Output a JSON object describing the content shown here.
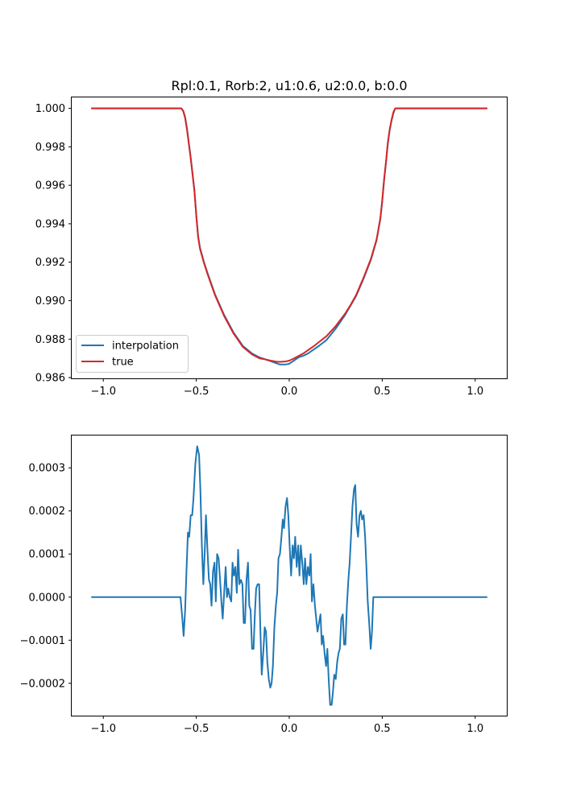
{
  "chart_data": [
    {
      "type": "line",
      "title": "Rpl:0.1, Rorb:2, u1:0.6, u2:0.0, b:0.0",
      "xlabel": "",
      "ylabel": "",
      "xlim": [
        -1.17,
        1.17
      ],
      "ylim": [
        0.98596,
        1.00057
      ],
      "xticks": [
        -1.0,
        -0.5,
        0.0,
        0.5,
        1.0
      ],
      "xtick_labels": [
        "−1.0",
        "−0.5",
        "0.0",
        "0.5",
        "1.0"
      ],
      "yticks": [
        0.986,
        0.988,
        0.99,
        0.992,
        0.994,
        0.996,
        0.998,
        1.0
      ],
      "ytick_labels": [
        "0.986",
        "0.988",
        "0.990",
        "0.992",
        "0.994",
        "0.996",
        "0.998",
        "1.000"
      ],
      "grid": false,
      "legend": "lower-left",
      "series": [
        {
          "name": "interpolation",
          "color": "#1f77b4",
          "x": [
            -1.065,
            -0.6,
            -0.58,
            -0.57,
            -0.56,
            -0.55,
            -0.53,
            -0.51,
            -0.5,
            -0.49,
            -0.48,
            -0.46,
            -0.44,
            -0.4,
            -0.35,
            -0.3,
            -0.25,
            -0.2,
            -0.16,
            -0.13,
            -0.1,
            -0.07,
            -0.05,
            -0.02,
            0.0,
            0.02,
            0.05,
            0.08,
            0.1,
            0.13,
            0.16,
            0.2,
            0.25,
            0.3,
            0.33,
            0.36,
            0.4,
            0.44,
            0.47,
            0.49,
            0.5,
            0.51,
            0.52,
            0.53,
            0.54,
            0.55,
            0.56,
            0.57,
            0.6,
            1.065
          ],
          "y": [
            1.0,
            1.0,
            1.0,
            0.99987,
            0.99955,
            0.99895,
            0.99745,
            0.99575,
            0.99445,
            0.99335,
            0.99275,
            0.99205,
            0.99145,
            0.99035,
            0.98925,
            0.98835,
            0.98765,
            0.98725,
            0.98705,
            0.98695,
            0.98685,
            0.98675,
            0.98668,
            0.98668,
            0.98672,
            0.98685,
            0.98705,
            0.98715,
            0.98725,
            0.98745,
            0.98765,
            0.98795,
            0.98855,
            0.98925,
            0.98975,
            0.99025,
            0.99115,
            0.99215,
            0.99315,
            0.99425,
            0.99515,
            0.99625,
            0.99715,
            0.99815,
            0.99885,
            0.99935,
            0.99975,
            1.0,
            1.0,
            1.0
          ]
        },
        {
          "name": "true",
          "color": "#d62728",
          "x": [
            -1.065,
            -0.6,
            -0.58,
            -0.57,
            -0.56,
            -0.55,
            -0.53,
            -0.51,
            -0.5,
            -0.49,
            -0.48,
            -0.46,
            -0.44,
            -0.4,
            -0.35,
            -0.3,
            -0.25,
            -0.2,
            -0.16,
            -0.13,
            -0.1,
            -0.07,
            -0.05,
            -0.02,
            0.0,
            0.02,
            0.05,
            0.08,
            0.1,
            0.13,
            0.16,
            0.2,
            0.25,
            0.3,
            0.33,
            0.36,
            0.4,
            0.44,
            0.47,
            0.49,
            0.5,
            0.51,
            0.52,
            0.53,
            0.54,
            0.55,
            0.56,
            0.57,
            0.6,
            1.065
          ],
          "y": [
            1.0,
            1.0,
            1.0,
            0.99985,
            0.9995,
            0.9989,
            0.9974,
            0.9957,
            0.9944,
            0.9933,
            0.9927,
            0.992,
            0.9914,
            0.9903,
            0.9892,
            0.9883,
            0.9876,
            0.9872,
            0.987,
            0.98695,
            0.98688,
            0.98683,
            0.98682,
            0.98684,
            0.98688,
            0.98697,
            0.98712,
            0.98728,
            0.98742,
            0.98762,
            0.98785,
            0.98815,
            0.98868,
            0.98932,
            0.98978,
            0.9903,
            0.9912,
            0.9922,
            0.9932,
            0.9943,
            0.9952,
            0.9963,
            0.9972,
            0.9982,
            0.9989,
            0.9994,
            0.9998,
            1.0,
            1.0,
            1.0
          ]
        }
      ]
    },
    {
      "type": "line",
      "title": "",
      "xlabel": "",
      "ylabel": "",
      "xlim": [
        -1.17,
        1.17
      ],
      "ylim": [
        -0.000275,
        0.000375
      ],
      "xticks": [
        -1.0,
        -0.5,
        0.0,
        0.5,
        1.0
      ],
      "xtick_labels": [
        "−1.0",
        "−0.5",
        "0.0",
        "0.5",
        "1.0"
      ],
      "yticks": [
        -0.0002,
        -0.0001,
        0.0,
        0.0001,
        0.0002,
        0.0003
      ],
      "ytick_labels": [
        "−0.0002",
        "−0.0001",
        "0.0000",
        "0.0001",
        "0.0002",
        "0.0003"
      ],
      "grid": false,
      "series": [
        {
          "color": "#1f77b4",
          "x": [
            -1.065,
            -0.585,
            -0.575,
            -0.568,
            -0.56,
            -0.552,
            -0.545,
            -0.538,
            -0.53,
            -0.522,
            -0.515,
            -0.505,
            -0.495,
            -0.485,
            -0.478,
            -0.47,
            -0.462,
            -0.455,
            -0.448,
            -0.44,
            -0.432,
            -0.425,
            -0.418,
            -0.41,
            -0.402,
            -0.395,
            -0.388,
            -0.38,
            -0.372,
            -0.365,
            -0.358,
            -0.35,
            -0.342,
            -0.335,
            -0.328,
            -0.32,
            -0.312,
            -0.305,
            -0.298,
            -0.29,
            -0.282,
            -0.275,
            -0.268,
            -0.26,
            -0.252,
            -0.245,
            -0.238,
            -0.23,
            -0.222,
            -0.215,
            -0.208,
            -0.2,
            -0.192,
            -0.185,
            -0.178,
            -0.17,
            -0.162,
            -0.155,
            -0.148,
            -0.14,
            -0.132,
            -0.125,
            -0.118,
            -0.11,
            -0.102,
            -0.095,
            -0.088,
            -0.08,
            -0.072,
            -0.065,
            -0.058,
            -0.05,
            -0.042,
            -0.035,
            -0.028,
            -0.02,
            -0.012,
            -0.005,
            0.002,
            0.01,
            0.018,
            0.025,
            0.032,
            0.04,
            0.048,
            0.055,
            0.062,
            0.07,
            0.078,
            0.085,
            0.092,
            0.1,
            0.108,
            0.115,
            0.122,
            0.13,
            0.138,
            0.145,
            0.152,
            0.16,
            0.168,
            0.175,
            0.182,
            0.19,
            0.198,
            0.205,
            0.212,
            0.22,
            0.228,
            0.235,
            0.242,
            0.25,
            0.258,
            0.265,
            0.272,
            0.28,
            0.288,
            0.295,
            0.302,
            0.31,
            0.318,
            0.325,
            0.332,
            0.34,
            0.348,
            0.355,
            0.362,
            0.37,
            0.378,
            0.385,
            0.392,
            0.4,
            0.408,
            0.415,
            0.422,
            0.43,
            0.438,
            0.445,
            0.452,
            0.46,
            0.468,
            0.475,
            0.482,
            0.49,
            0.498,
            0.505,
            0.512,
            0.52,
            0.528,
            0.535,
            0.542,
            0.55,
            0.558,
            0.565,
            0.575,
            0.585,
            1.065
          ],
          "y": [
            0.0,
            0.0,
            -5e-05,
            -9e-05,
            -3e-05,
            7e-05,
            0.00015,
            0.00014,
            0.00019,
            0.00019,
            0.00023,
            0.00031,
            0.00035,
            0.00033,
            0.00025,
            0.00012,
            3e-05,
            0.0001,
            0.00019,
            0.00011,
            4e-05,
            3e-05,
            -2e-05,
            6e-05,
            8e-05,
            -1e-05,
            0.0001,
            9e-05,
            4e-05,
            -1e-05,
            -5e-05,
            1e-05,
            7e-05,
            0.0,
            2e-05,
            0.0,
            -1e-05,
            8e-05,
            5e-05,
            7e-05,
            1e-05,
            0.00011,
            3e-05,
            4e-05,
            3e-05,
            -6e-05,
            -6e-05,
            4e-05,
            8e-05,
            -2e-05,
            -3e-05,
            -0.00012,
            -0.00012,
            -4e-05,
            2e-05,
            3e-05,
            3e-05,
            -8e-05,
            -0.00018,
            -0.00013,
            -7e-05,
            -8e-05,
            -0.00015,
            -0.00019,
            -0.00021,
            -0.0002,
            -0.00016,
            -7e-05,
            -2e-05,
            1e-05,
            9e-05,
            0.0001,
            0.00014,
            0.00018,
            0.00016,
            0.00021,
            0.00023,
            0.00019,
            0.00012,
            5e-05,
            0.00012,
            9e-05,
            0.00014,
            7e-05,
            0.00012,
            5e-05,
            0.00012,
            8e-05,
            3e-05,
            9e-05,
            3e-05,
            7e-05,
            5e-05,
            0.0001,
            -1e-05,
            3e-05,
            -2e-05,
            -5e-05,
            -8e-05,
            -6e-05,
            -4e-05,
            -0.00011,
            -9e-05,
            -0.00013,
            -0.00016,
            -0.00012,
            -0.00019,
            -0.00025,
            -0.00025,
            -0.00022,
            -0.00018,
            -0.00019,
            -0.00015,
            -0.00013,
            -0.00012,
            -5e-05,
            -4e-05,
            -0.00011,
            -0.00011,
            -2e-05,
            4e-05,
            8e-05,
            0.00014,
            0.00021,
            0.00025,
            0.00026,
            0.00017,
            0.00014,
            0.00019,
            0.0002,
            0.00018,
            0.00019,
            0.00014,
            7e-05,
            -1e-05,
            -6e-05,
            -0.00012,
            -8e-05,
            0.0,
            0.0,
            0.0,
            0.0,
            0.0,
            0.0,
            0.0,
            0.0,
            0.0,
            0.0,
            0.0,
            0.0,
            0.0,
            0.0,
            0.0,
            0.0,
            0.0,
            0.0,
            0.0
          ]
        }
      ]
    }
  ]
}
